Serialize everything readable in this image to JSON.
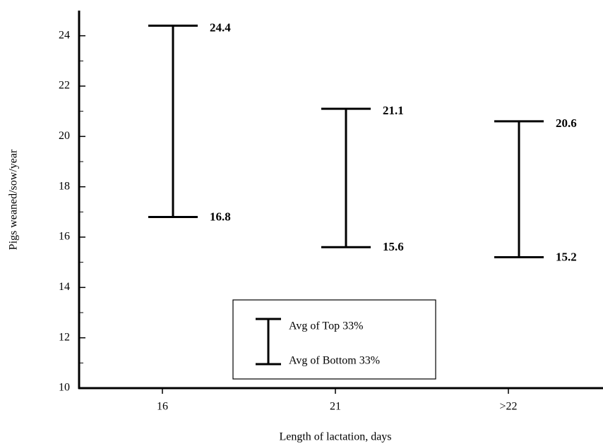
{
  "chart_data": {
    "type": "range",
    "x_label": "Length of lactation, days",
    "y_label": "Pigs weaned/sow/year",
    "categories": [
      "16",
      "21",
      ">22"
    ],
    "series": [
      {
        "name": "Avg of Top 33%",
        "color": "#000000",
        "values": [
          24.4,
          21.1,
          20.6
        ]
      },
      {
        "name": "Avg of Bottom 33%",
        "color": "#000000",
        "values": [
          16.8,
          15.6,
          15.2
        ]
      }
    ],
    "ylim": [
      10,
      25
    ],
    "yticks": [
      10,
      12,
      14,
      16,
      18,
      20,
      22,
      24
    ],
    "yminorticks": [
      11,
      13,
      15,
      17,
      19,
      21,
      23
    ],
    "legend": "bottom-center"
  }
}
